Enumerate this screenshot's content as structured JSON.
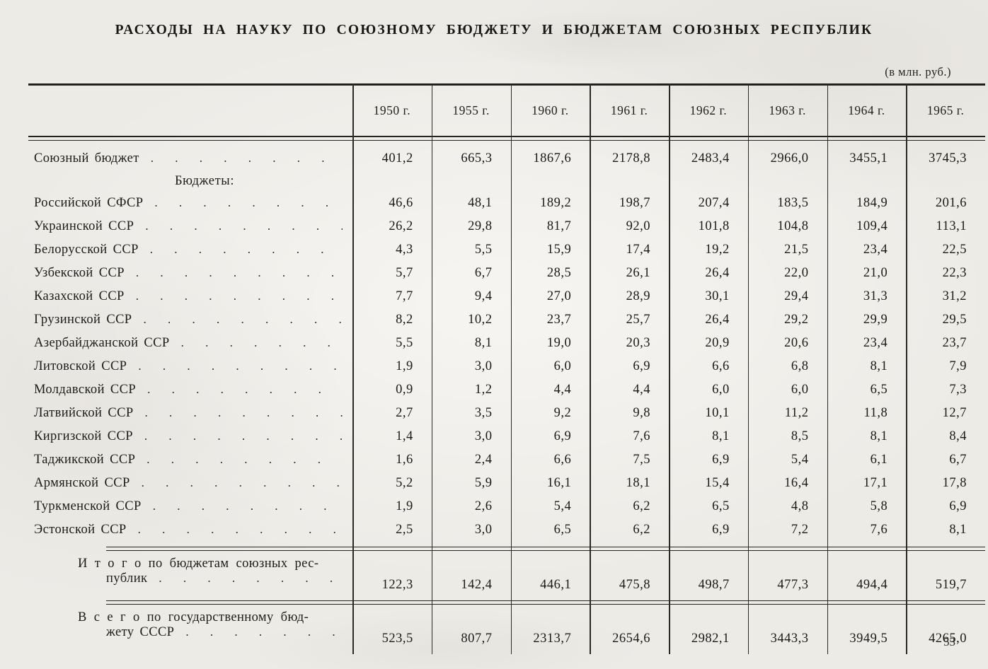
{
  "page": {
    "title": "РАСХОДЫ НА НАУКУ ПО СОЮЗНОМУ БЮДЖЕТУ И БЮДЖЕТАМ СОЮЗНЫХ РЕСПУБЛИК",
    "units_note": "(в млн. руб.)",
    "page_number": "53"
  },
  "table": {
    "columns": [
      "1950 г.",
      "1955 г.",
      "1960 г.",
      "1961 г.",
      "1962 г.",
      "1963 г.",
      "1964 г.",
      "1965 г."
    ],
    "rows": [
      {
        "label": "Союзный бюджет",
        "values": [
          "401,2",
          "665,3",
          "1867,6",
          "2178,8",
          "2483,4",
          "2966,0",
          "3455,1",
          "3745,3"
        ]
      },
      {
        "type": "subheader",
        "label": "Бюджеты:"
      },
      {
        "label": "Российской СФСР",
        "values": [
          "46,6",
          "48,1",
          "189,2",
          "198,7",
          "207,4",
          "183,5",
          "184,9",
          "201,6"
        ]
      },
      {
        "label": "Украинской ССР",
        "values": [
          "26,2",
          "29,8",
          "81,7",
          "92,0",
          "101,8",
          "104,8",
          "109,4",
          "113,1"
        ]
      },
      {
        "label": "Белорусской ССР",
        "values": [
          "4,3",
          "5,5",
          "15,9",
          "17,4",
          "19,2",
          "21,5",
          "23,4",
          "22,5"
        ]
      },
      {
        "label": "Узбекской ССР",
        "values": [
          "5,7",
          "6,7",
          "28,5",
          "26,1",
          "26,4",
          "22,0",
          "21,0",
          "22,3"
        ]
      },
      {
        "label": "Казахской ССР",
        "values": [
          "7,7",
          "9,4",
          "27,0",
          "28,9",
          "30,1",
          "29,4",
          "31,3",
          "31,2"
        ]
      },
      {
        "label": "Грузинской ССР",
        "values": [
          "8,2",
          "10,2",
          "23,7",
          "25,7",
          "26,4",
          "29,2",
          "29,9",
          "29,5"
        ]
      },
      {
        "label": "Азербайджанской ССР",
        "values": [
          "5,5",
          "8,1",
          "19,0",
          "20,3",
          "20,9",
          "20,6",
          "23,4",
          "23,7"
        ]
      },
      {
        "label": "Литовской ССР",
        "values": [
          "1,9",
          "3,0",
          "6,0",
          "6,9",
          "6,6",
          "6,8",
          "8,1",
          "7,9"
        ]
      },
      {
        "label": "Молдавской ССР",
        "values": [
          "0,9",
          "1,2",
          "4,4",
          "4,4",
          "6,0",
          "6,0",
          "6,5",
          "7,3"
        ]
      },
      {
        "label": "Латвийской ССР",
        "values": [
          "2,7",
          "3,5",
          "9,2",
          "9,8",
          "10,1",
          "11,2",
          "11,8",
          "12,7"
        ]
      },
      {
        "label": "Киргизской ССР",
        "values": [
          "1,4",
          "3,0",
          "6,9",
          "7,6",
          "8,1",
          "8,5",
          "8,1",
          "8,4"
        ]
      },
      {
        "label": "Таджикской ССР",
        "values": [
          "1,6",
          "2,4",
          "6,6",
          "7,5",
          "6,9",
          "5,4",
          "6,1",
          "6,7"
        ]
      },
      {
        "label": "Армянской ССР",
        "values": [
          "5,2",
          "5,9",
          "16,1",
          "18,1",
          "15,4",
          "16,4",
          "17,1",
          "17,8"
        ]
      },
      {
        "label": "Туркменской ССР",
        "values": [
          "1,9",
          "2,6",
          "5,4",
          "6,2",
          "6,5",
          "4,8",
          "5,8",
          "6,9"
        ]
      },
      {
        "label": "Эстонской ССР",
        "values": [
          "2,5",
          "3,0",
          "6,5",
          "6,2",
          "6,9",
          "7,2",
          "7,6",
          "8,1"
        ]
      }
    ],
    "totals": [
      {
        "label_line1": "И т о г о  по  бюджетам  союзных  рес-",
        "label_line2": "публик",
        "values": [
          "122,3",
          "142,4",
          "446,1",
          "475,8",
          "498,7",
          "477,3",
          "494,4",
          "519,7"
        ]
      },
      {
        "label_line1": "В с е г о  по  государственному  бюд-",
        "label_line2": "жету СССР",
        "values": [
          "523,5",
          "807,7",
          "2313,7",
          "2654,6",
          "2982,1",
          "3443,3",
          "3949,5",
          "4265,0"
        ]
      }
    ]
  }
}
